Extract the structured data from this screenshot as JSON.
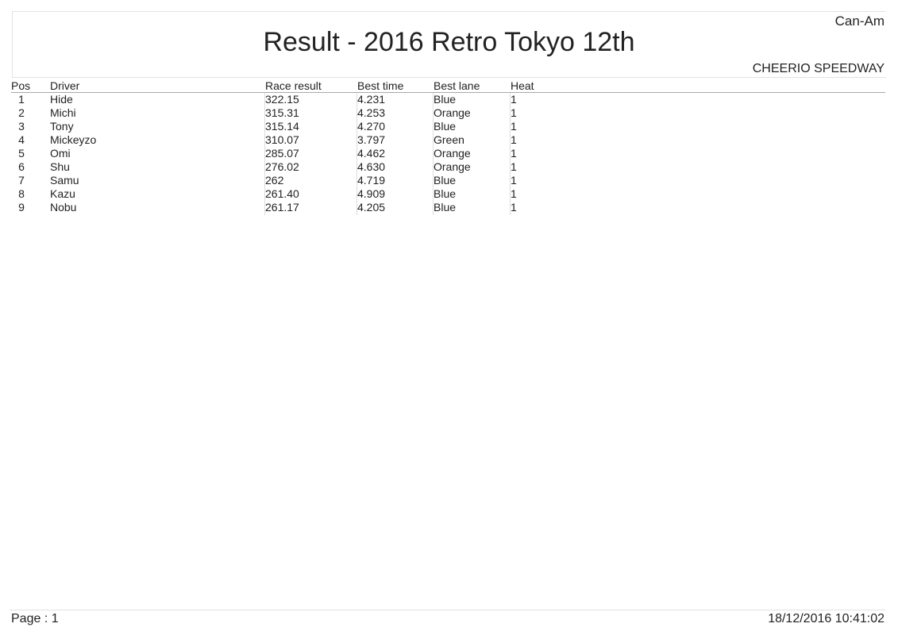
{
  "header": {
    "category": "Can-Am",
    "title": "Result - 2016 Retro Tokyo 12th",
    "venue": "CHEERIO SPEEDWAY"
  },
  "table": {
    "columns": [
      "Pos",
      "Driver",
      "Race result",
      "Best time",
      "Best lane",
      "Heat"
    ],
    "rows": [
      [
        "1",
        "Hide",
        "322.15",
        "4.231",
        "Blue",
        "1"
      ],
      [
        "2",
        "Michi",
        "315.31",
        "4.253",
        "Orange",
        "1"
      ],
      [
        "3",
        "Tony",
        "315.14",
        "4.270",
        "Blue",
        "1"
      ],
      [
        "4",
        "Mickeyzo",
        "310.07",
        "3.797",
        "Green",
        "1"
      ],
      [
        "5",
        "Omi",
        "285.07",
        "4.462",
        "Orange",
        "1"
      ],
      [
        "6",
        "Shu",
        "276.02",
        "4.630",
        "Orange",
        "1"
      ],
      [
        "7",
        "Samu",
        "262",
        "4.719",
        "Blue",
        "1"
      ],
      [
        "8",
        "Kazu",
        "261.40",
        "4.909",
        "Blue",
        "1"
      ],
      [
        "9",
        "Nobu",
        "261.17",
        "4.205",
        "Blue",
        "1"
      ]
    ]
  },
  "footer": {
    "page": "Page : 1",
    "datetime": "18/12/2016  10:41:02"
  }
}
